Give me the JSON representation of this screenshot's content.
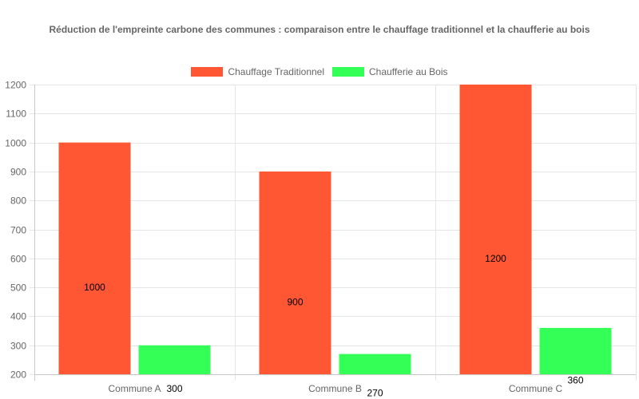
{
  "chart_data": {
    "type": "bar",
    "title": "Réduction de l'empreinte carbone des communes : comparaison entre le chauffage traditionnel et la chaufferie au bois",
    "categories": [
      "Commune A",
      "Commune B",
      "Commune C"
    ],
    "series": [
      {
        "name": "Chauffage Traditionnel",
        "color": "#ff5733",
        "values": [
          1000,
          900,
          1200
        ]
      },
      {
        "name": "Chaufferie au Bois",
        "color": "#33ff57",
        "values": [
          300,
          270,
          360
        ]
      }
    ],
    "xlabel": "",
    "ylabel": "",
    "ylim": [
      200,
      1200
    ],
    "yticks": [
      200,
      300,
      400,
      500,
      600,
      700,
      800,
      900,
      1000,
      1100,
      1200
    ],
    "grid": true,
    "legend_position": "top",
    "data_labels": true
  },
  "title": "Réduction de l'empreinte carbone des communes : comparaison entre le chauffage traditionnel et la chaufferie au bois",
  "legend": [
    {
      "label": "Chauffage Traditionnel",
      "color": "#ff5733"
    },
    {
      "label": "Chaufferie au Bois",
      "color": "#33ff57"
    }
  ]
}
